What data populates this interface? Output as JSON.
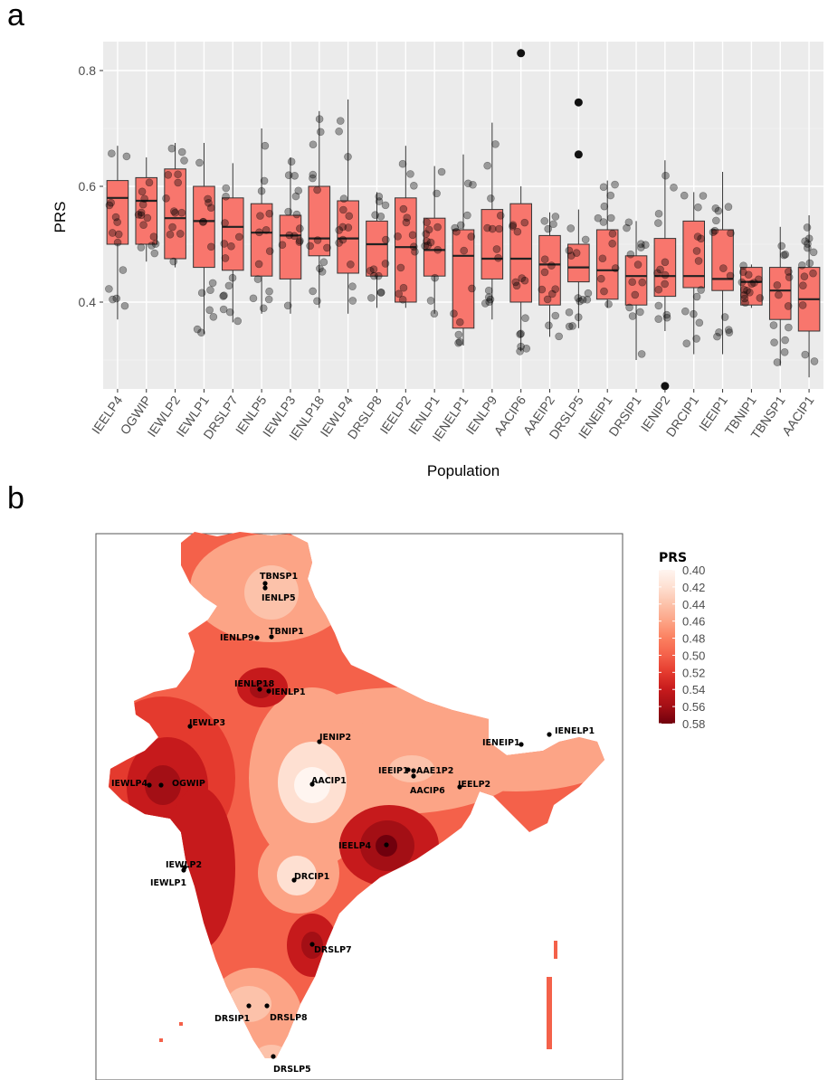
{
  "panels": {
    "a": "a",
    "b": "b"
  },
  "chart_data": {
    "type": "box",
    "xlabel": "Population",
    "ylabel": "PRS",
    "ylim": [
      0.25,
      0.85
    ],
    "yticks": [
      0.4,
      0.6,
      0.8
    ],
    "ytick_labels": [
      "0.4",
      "0.6",
      "0.8"
    ],
    "grid": true,
    "fill_color": "#f8766d",
    "categories": [
      "IEELP4",
      "OGWIP",
      "IEWLP2",
      "IEWLP1",
      "DRSLP7",
      "IENLP5",
      "IEWLP3",
      "IENLP18",
      "IEWLP4",
      "DRSLP8",
      "IEELP2",
      "IENLP1",
      "IENELP1",
      "IENLP9",
      "AACIP6",
      "AAEIP2",
      "DRSLP5",
      "IENEIP1",
      "DRSIP1",
      "IENIP2",
      "DRCIP1",
      "IEEIP1",
      "TBNIP1",
      "TBNSP1",
      "AACIP1"
    ],
    "boxes": [
      {
        "q1": 0.5,
        "median": 0.58,
        "q3": 0.61,
        "whisker_low": 0.37,
        "whisker_high": 0.67,
        "outliers": []
      },
      {
        "q1": 0.5,
        "median": 0.575,
        "q3": 0.615,
        "whisker_low": 0.47,
        "whisker_high": 0.65,
        "outliers": []
      },
      {
        "q1": 0.475,
        "median": 0.545,
        "q3": 0.63,
        "whisker_low": 0.46,
        "whisker_high": 0.675,
        "outliers": []
      },
      {
        "q1": 0.46,
        "median": 0.54,
        "q3": 0.6,
        "whisker_low": 0.345,
        "whisker_high": 0.675,
        "outliers": []
      },
      {
        "q1": 0.455,
        "median": 0.53,
        "q3": 0.58,
        "whisker_low": 0.365,
        "whisker_high": 0.64,
        "outliers": []
      },
      {
        "q1": 0.445,
        "median": 0.52,
        "q3": 0.57,
        "whisker_low": 0.38,
        "whisker_high": 0.7,
        "outliers": []
      },
      {
        "q1": 0.44,
        "median": 0.515,
        "q3": 0.55,
        "whisker_low": 0.38,
        "whisker_high": 0.65,
        "outliers": []
      },
      {
        "q1": 0.48,
        "median": 0.51,
        "q3": 0.6,
        "whisker_low": 0.39,
        "whisker_high": 0.73,
        "outliers": []
      },
      {
        "q1": 0.45,
        "median": 0.51,
        "q3": 0.575,
        "whisker_low": 0.38,
        "whisker_high": 0.75,
        "outliers": []
      },
      {
        "q1": 0.445,
        "median": 0.5,
        "q3": 0.54,
        "whisker_low": 0.39,
        "whisker_high": 0.59,
        "outliers": []
      },
      {
        "q1": 0.4,
        "median": 0.495,
        "q3": 0.58,
        "whisker_low": 0.39,
        "whisker_high": 0.67,
        "outliers": []
      },
      {
        "q1": 0.445,
        "median": 0.49,
        "q3": 0.545,
        "whisker_low": 0.38,
        "whisker_high": 0.635,
        "outliers": []
      },
      {
        "q1": 0.355,
        "median": 0.48,
        "q3": 0.525,
        "whisker_low": 0.325,
        "whisker_high": 0.655,
        "outliers": []
      },
      {
        "q1": 0.44,
        "median": 0.475,
        "q3": 0.56,
        "whisker_low": 0.37,
        "whisker_high": 0.71,
        "outliers": []
      },
      {
        "q1": 0.4,
        "median": 0.475,
        "q3": 0.57,
        "whisker_low": 0.315,
        "whisker_high": 0.6,
        "outliers": [
          0.83
        ]
      },
      {
        "q1": 0.395,
        "median": 0.465,
        "q3": 0.515,
        "whisker_low": 0.34,
        "whisker_high": 0.555,
        "outliers": []
      },
      {
        "q1": 0.435,
        "median": 0.46,
        "q3": 0.5,
        "whisker_low": 0.355,
        "whisker_high": 0.56,
        "outliers": [
          0.655,
          0.745
        ]
      },
      {
        "q1": 0.405,
        "median": 0.455,
        "q3": 0.525,
        "whisker_low": 0.39,
        "whisker_high": 0.61,
        "outliers": []
      },
      {
        "q1": 0.395,
        "median": 0.445,
        "q3": 0.48,
        "whisker_low": 0.3,
        "whisker_high": 0.54,
        "outliers": []
      },
      {
        "q1": 0.41,
        "median": 0.445,
        "q3": 0.51,
        "whisker_low": 0.35,
        "whisker_high": 0.645,
        "outliers": [
          0.255
        ]
      },
      {
        "q1": 0.425,
        "median": 0.445,
        "q3": 0.54,
        "whisker_low": 0.31,
        "whisker_high": 0.59,
        "outliers": []
      },
      {
        "q1": 0.42,
        "median": 0.44,
        "q3": 0.525,
        "whisker_low": 0.31,
        "whisker_high": 0.625,
        "outliers": []
      },
      {
        "q1": 0.395,
        "median": 0.435,
        "q3": 0.46,
        "whisker_low": 0.39,
        "whisker_high": 0.465,
        "outliers": []
      },
      {
        "q1": 0.37,
        "median": 0.42,
        "q3": 0.46,
        "whisker_low": 0.29,
        "whisker_high": 0.53,
        "outliers": []
      },
      {
        "q1": 0.35,
        "median": 0.405,
        "q3": 0.46,
        "whisker_low": 0.27,
        "whisker_high": 0.55,
        "outliers": []
      }
    ]
  },
  "map": {
    "legend_title": "PRS",
    "legend_values": [
      "0.40",
      "0.42",
      "0.44",
      "0.46",
      "0.48",
      "0.50",
      "0.52",
      "0.54",
      "0.56",
      "0.58"
    ],
    "legend_colors": [
      "#fff5f0",
      "#fee0d2",
      "#fcc2aa",
      "#fca486",
      "#fb8060",
      "#f4614a",
      "#e43a2e",
      "#c61a1c",
      "#a30f15",
      "#70000d"
    ],
    "sites": [
      {
        "name": "TBNSP1"
      },
      {
        "name": "IENLP5"
      },
      {
        "name": "IENLP9"
      },
      {
        "name": "TBNIP1"
      },
      {
        "name": "IENLP18"
      },
      {
        "name": "IENLP1"
      },
      {
        "name": "IEWLP3"
      },
      {
        "name": "IENIP2"
      },
      {
        "name": "IEWLP4"
      },
      {
        "name": "OGWIP"
      },
      {
        "name": "AACIP1"
      },
      {
        "name": "IEEIP1"
      },
      {
        "name": "AAE1P2"
      },
      {
        "name": "AACIP6"
      },
      {
        "name": "IEELP2"
      },
      {
        "name": "IENEIP1"
      },
      {
        "name": "IENELP1"
      },
      {
        "name": "IEELP4"
      },
      {
        "name": "IEWLP2"
      },
      {
        "name": "IEWLP1"
      },
      {
        "name": "DRCIP1"
      },
      {
        "name": "DRSLP7"
      },
      {
        "name": "DRSIP1"
      },
      {
        "name": "DRSLP8"
      },
      {
        "name": "DRSLP5"
      }
    ]
  }
}
